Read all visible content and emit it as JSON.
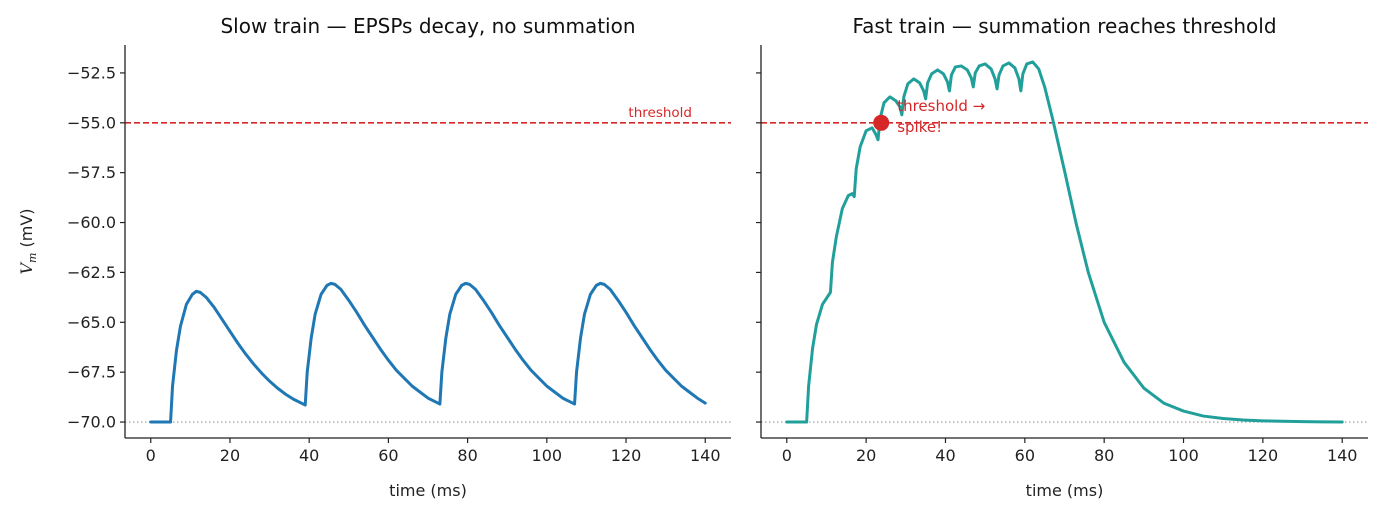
{
  "chart_data": [
    {
      "type": "line",
      "title": "Slow train — EPSPs decay, no summation",
      "xlabel": "time (ms)",
      "ylabel_symbol": "V",
      "ylabel_sub": "m",
      "ylabel_unit": " (mV)",
      "xlim": [
        -6.5,
        146.5
      ],
      "ylim": [
        -70.8,
        -51.1
      ],
      "xticks": [
        "0",
        "20",
        "40",
        "60",
        "80",
        "100",
        "120",
        "140"
      ],
      "yticks": [
        "−52.5",
        "−55.0",
        "−57.5",
        "−60.0",
        "−62.5",
        "−65.0",
        "−67.5",
        "−70.0"
      ],
      "xtick_values": [
        0,
        20,
        40,
        60,
        80,
        100,
        120,
        140
      ],
      "ytick_values": [
        -52.5,
        -55.0,
        -57.5,
        -60.0,
        -62.5,
        -65.0,
        -67.5,
        -70.0
      ],
      "threshold": -55.0,
      "threshold_label": "threshold",
      "rest": -70.0,
      "series": [
        {
          "color": "#1f77b4",
          "x": [
            0,
            5,
            5.5,
            6.5,
            7.5,
            9,
            10.5,
            11.5,
            12.5,
            14,
            16,
            18,
            20,
            22,
            24,
            26,
            28,
            30,
            32,
            34,
            36,
            38,
            39,
            39.5,
            40.5,
            41.5,
            43,
            44.5,
            45.5,
            46.5,
            48,
            50,
            52,
            54,
            56,
            58,
            60,
            62,
            64,
            66,
            68,
            70,
            72,
            73,
            73.5,
            74.5,
            75.5,
            77,
            78.5,
            79.5,
            80.5,
            82,
            84,
            86,
            88,
            90,
            92,
            94,
            96,
            98,
            100,
            102,
            104,
            106,
            107,
            107.5,
            108.5,
            109.5,
            111,
            112.5,
            113.5,
            114.5,
            116,
            118,
            120,
            122,
            124,
            126,
            128,
            130,
            132,
            134,
            136,
            138,
            140
          ],
          "y": [
            -70,
            -70,
            -68.2,
            -66.4,
            -65.2,
            -64.1,
            -63.6,
            -63.45,
            -63.5,
            -63.75,
            -64.25,
            -64.85,
            -65.45,
            -66.05,
            -66.6,
            -67.1,
            -67.55,
            -67.95,
            -68.3,
            -68.6,
            -68.85,
            -69.05,
            -69.15,
            -67.5,
            -65.8,
            -64.6,
            -63.6,
            -63.15,
            -63.05,
            -63.1,
            -63.35,
            -63.9,
            -64.5,
            -65.15,
            -65.75,
            -66.35,
            -66.9,
            -67.4,
            -67.8,
            -68.2,
            -68.5,
            -68.8,
            -69.0,
            -69.1,
            -67.5,
            -65.8,
            -64.6,
            -63.6,
            -63.15,
            -63.05,
            -63.1,
            -63.35,
            -63.9,
            -64.5,
            -65.15,
            -65.75,
            -66.35,
            -66.9,
            -67.4,
            -67.8,
            -68.2,
            -68.5,
            -68.8,
            -69.0,
            -69.1,
            -67.5,
            -65.8,
            -64.6,
            -63.6,
            -63.15,
            -63.05,
            -63.1,
            -63.35,
            -63.9,
            -64.5,
            -65.15,
            -65.75,
            -66.35,
            -66.9,
            -67.4,
            -67.8,
            -68.2,
            -68.5,
            -68.8,
            -69.05
          ]
        }
      ]
    },
    {
      "type": "line",
      "title": "Fast train — summation reaches threshold",
      "xlabel": "time (ms)",
      "xlim": [
        -6.5,
        146.5
      ],
      "ylim": [
        -70.8,
        -51.1
      ],
      "xticks": [
        "0",
        "20",
        "40",
        "60",
        "80",
        "100",
        "120",
        "140"
      ],
      "xtick_values": [
        0,
        20,
        40,
        60,
        80,
        100,
        120,
        140
      ],
      "ytick_values": [
        -52.5,
        -55.0,
        -57.5,
        -60.0,
        -62.5,
        -65.0,
        -67.5,
        -70.0
      ],
      "threshold": -55.0,
      "threshold_label_line1": "threshold →",
      "threshold_label_line2": "spike!",
      "rest": -70.0,
      "crossing": {
        "x": 23.8,
        "y": -55.0
      },
      "series": [
        {
          "color": "#21a09b",
          "x": [
            0,
            5,
            5.5,
            6.5,
            7.5,
            9,
            10,
            11,
            11.5,
            12.5,
            14,
            15.5,
            16.5,
            17,
            17.5,
            18.5,
            20,
            21.5,
            22.5,
            23,
            23.5,
            24.5,
            26,
            27.5,
            28.5,
            29,
            29.5,
            30.5,
            32,
            33.5,
            34.5,
            35,
            35.5,
            36.5,
            38,
            39.5,
            40.5,
            41,
            41.5,
            42.5,
            44,
            45.5,
            46.5,
            47,
            47.5,
            48.5,
            50,
            51.5,
            52.5,
            53,
            53.5,
            54.5,
            56,
            57.5,
            58.5,
            59,
            59.5,
            60.5,
            62,
            63.5,
            65,
            67,
            70,
            73,
            76,
            80,
            85,
            90,
            95,
            100,
            105,
            110,
            115,
            120,
            125,
            130,
            135,
            140
          ],
          "y": [
            -70,
            -70,
            -68.2,
            -66.3,
            -65.1,
            -64.1,
            -63.8,
            -63.5,
            -62.0,
            -60.7,
            -59.3,
            -58.65,
            -58.55,
            -58.7,
            -57.3,
            -56.2,
            -55.4,
            -55.25,
            -55.6,
            -55.85,
            -54.8,
            -54.0,
            -53.7,
            -53.9,
            -54.2,
            -54.6,
            -53.7,
            -53.05,
            -52.8,
            -53.0,
            -53.4,
            -53.8,
            -53.0,
            -52.55,
            -52.35,
            -52.55,
            -52.95,
            -53.4,
            -52.6,
            -52.2,
            -52.15,
            -52.35,
            -52.75,
            -53.2,
            -52.5,
            -52.15,
            -52.05,
            -52.3,
            -52.8,
            -53.3,
            -52.6,
            -52.15,
            -52.0,
            -52.25,
            -52.8,
            -53.4,
            -52.55,
            -52.05,
            -51.95,
            -52.3,
            -53.2,
            -54.8,
            -57.4,
            -60.1,
            -62.5,
            -65.0,
            -67.0,
            -68.3,
            -69.05,
            -69.45,
            -69.7,
            -69.82,
            -69.9,
            -69.94,
            -69.96,
            -69.98,
            -69.99,
            -70.0
          ]
        }
      ]
    }
  ],
  "colors": {
    "threshold": "#d62728",
    "rest": "#999999",
    "axis": "#222222"
  }
}
